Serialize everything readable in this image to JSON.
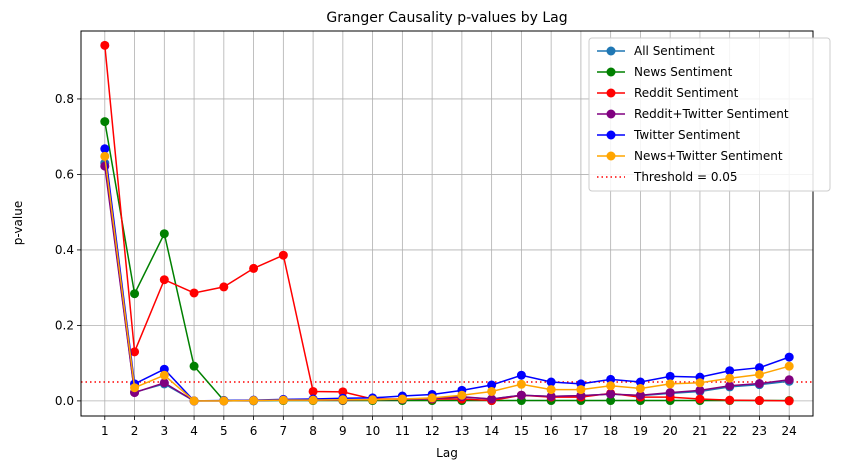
{
  "chart_data": {
    "type": "line",
    "title": "Granger Causality p-values by Lag",
    "xlabel": "Lag",
    "ylabel": "p-value",
    "ylim": [
      -0.04,
      0.98
    ],
    "x": [
      1,
      2,
      3,
      4,
      5,
      6,
      7,
      8,
      9,
      10,
      11,
      12,
      13,
      14,
      15,
      16,
      17,
      18,
      19,
      20,
      21,
      22,
      23,
      24
    ],
    "y_ticks": [
      0.0,
      0.2,
      0.4,
      0.6,
      0.8
    ],
    "grid": true,
    "legend_position": "top-right",
    "series": [
      {
        "name": "All Sentiment",
        "color": "#1f77b4",
        "values": [
          0.63,
          0.023,
          0.045,
          0.0,
          0.0,
          0.0,
          0.002,
          0.002,
          0.002,
          0.002,
          0.004,
          0.006,
          0.01,
          0.005,
          0.015,
          0.012,
          0.014,
          0.018,
          0.014,
          0.02,
          0.025,
          0.037,
          0.043,
          0.052
        ]
      },
      {
        "name": "News Sentiment",
        "color": "#008000",
        "values": [
          0.74,
          0.284,
          0.443,
          0.092,
          0.001,
          0.001,
          0.001,
          0.001,
          0.001,
          0.001,
          0.001,
          0.001,
          0.001,
          0.001,
          0.001,
          0.001,
          0.001,
          0.001,
          0.001,
          0.001,
          0.001,
          0.001,
          0.001,
          0.001
        ]
      },
      {
        "name": "Reddit Sentiment",
        "color": "#ff0000",
        "values": [
          0.942,
          0.13,
          0.321,
          0.286,
          0.302,
          0.351,
          0.386,
          0.025,
          0.024,
          0.005,
          0.005,
          0.005,
          0.005,
          0.001,
          0.015,
          0.01,
          0.01,
          0.02,
          0.01,
          0.01,
          0.005,
          0.002,
          0.001,
          0.0
        ]
      },
      {
        "name": "Reddit+Twitter Sentiment",
        "color": "#800080",
        "values": [
          0.622,
          0.022,
          0.048,
          0.0,
          0.0,
          0.001,
          0.002,
          0.002,
          0.002,
          0.003,
          0.004,
          0.006,
          0.011,
          0.005,
          0.015,
          0.012,
          0.014,
          0.018,
          0.015,
          0.022,
          0.028,
          0.04,
          0.046,
          0.056
        ]
      },
      {
        "name": "Twitter Sentiment",
        "color": "#0000ff",
        "values": [
          0.668,
          0.045,
          0.084,
          0.0,
          0.001,
          0.002,
          0.004,
          0.005,
          0.007,
          0.008,
          0.013,
          0.017,
          0.028,
          0.042,
          0.068,
          0.05,
          0.045,
          0.057,
          0.05,
          0.065,
          0.063,
          0.08,
          0.088,
          0.116
        ]
      },
      {
        "name": "News+Twitter Sentiment",
        "color": "#ffa500",
        "values": [
          0.648,
          0.035,
          0.068,
          0.0,
          0.0,
          0.001,
          0.002,
          0.002,
          0.003,
          0.003,
          0.005,
          0.008,
          0.015,
          0.025,
          0.044,
          0.03,
          0.03,
          0.04,
          0.033,
          0.045,
          0.048,
          0.06,
          0.07,
          0.092
        ]
      }
    ],
    "threshold": {
      "label": "Threshold = 0.05",
      "value": 0.05,
      "color": "#ff0000"
    }
  }
}
